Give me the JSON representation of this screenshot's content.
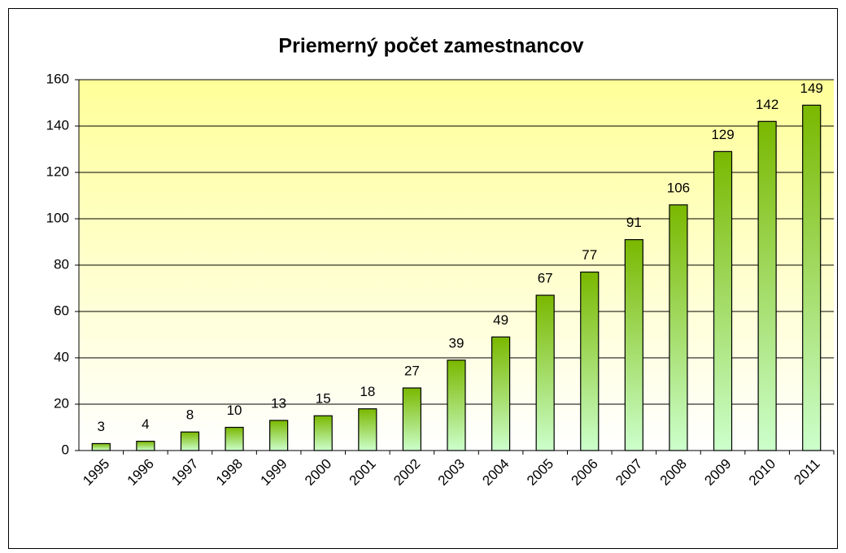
{
  "chart_data": {
    "type": "bar",
    "title": "Priemerný počet zamestnancov",
    "categories": [
      "1995",
      "1996",
      "1997",
      "1998",
      "1999",
      "2000",
      "2001",
      "2002",
      "2003",
      "2004",
      "2005",
      "2006",
      "2007",
      "2008",
      "2009",
      "2010",
      "2011"
    ],
    "values": [
      3,
      4,
      8,
      10,
      13,
      15,
      18,
      27,
      39,
      49,
      67,
      77,
      91,
      106,
      129,
      142,
      149
    ],
    "color": "#7ab800",
    "ylim": [
      0,
      160
    ],
    "yticks": [
      0,
      20,
      40,
      60,
      80,
      100,
      120,
      140,
      160
    ],
    "grid": true
  }
}
